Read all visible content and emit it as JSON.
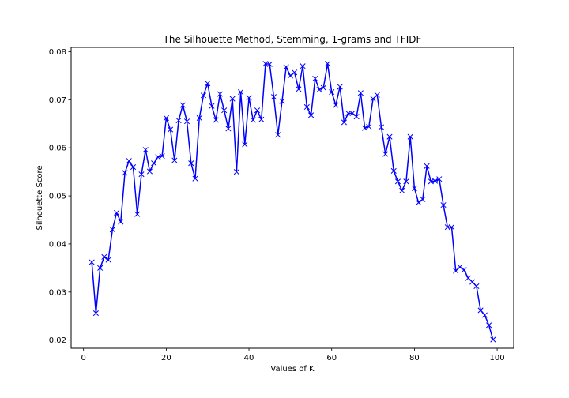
{
  "chart_data": {
    "type": "line",
    "title": "The Silhouette Method, Stemming, 1-grams and TFIDF",
    "xlabel": "Values of K",
    "ylabel": "Silhouette Score",
    "xlim": [
      -3.0,
      104.0
    ],
    "ylim": [
      0.0183,
      0.0809
    ],
    "x_ticks": [
      0,
      20,
      40,
      60,
      80,
      100
    ],
    "y_ticks": [
      0.02,
      0.03,
      0.04,
      0.05,
      0.06,
      0.07,
      0.08
    ],
    "y_tick_labels": [
      "0.02",
      "0.03",
      "0.04",
      "0.05",
      "0.06",
      "0.07",
      "0.08"
    ],
    "grid": false,
    "legend": "none",
    "series_color": "#0000ff",
    "marker": "x",
    "x": [
      2,
      3,
      4,
      5,
      6,
      7,
      8,
      9,
      10,
      11,
      12,
      13,
      14,
      15,
      16,
      17,
      18,
      19,
      20,
      21,
      22,
      23,
      24,
      25,
      26,
      27,
      28,
      29,
      30,
      31,
      32,
      33,
      34,
      35,
      36,
      37,
      38,
      39,
      40,
      41,
      42,
      43,
      44,
      45,
      46,
      47,
      48,
      49,
      50,
      51,
      52,
      53,
      54,
      55,
      56,
      57,
      58,
      59,
      60,
      61,
      62,
      63,
      64,
      65,
      66,
      67,
      68,
      69,
      70,
      71,
      72,
      73,
      74,
      75,
      76,
      77,
      78,
      79,
      80,
      81,
      82,
      83,
      84,
      85,
      86,
      87,
      88,
      89,
      90,
      91,
      92,
      93,
      94,
      95,
      96,
      97,
      98,
      99
    ],
    "y": [
      0.0362,
      0.0256,
      0.035,
      0.0373,
      0.0367,
      0.043,
      0.0465,
      0.0446,
      0.0548,
      0.0573,
      0.056,
      0.0462,
      0.0545,
      0.0596,
      0.0551,
      0.0568,
      0.0581,
      0.0583,
      0.0662,
      0.0638,
      0.0574,
      0.0657,
      0.0689,
      0.0655,
      0.0568,
      0.0536,
      0.0662,
      0.0709,
      0.0734,
      0.0687,
      0.0658,
      0.0712,
      0.0678,
      0.064,
      0.0702,
      0.055,
      0.0716,
      0.0607,
      0.0704,
      0.0658,
      0.0678,
      0.0659,
      0.0775,
      0.0774,
      0.0706,
      0.0627,
      0.0697,
      0.0768,
      0.075,
      0.0757,
      0.0722,
      0.077,
      0.0685,
      0.0668,
      0.0744,
      0.0721,
      0.0725,
      0.0775,
      0.0716,
      0.0689,
      0.0727,
      0.0653,
      0.0672,
      0.0672,
      0.0665,
      0.0714,
      0.0641,
      0.0644,
      0.0702,
      0.071,
      0.0643,
      0.0587,
      0.0623,
      0.0552,
      0.053,
      0.0511,
      0.053,
      0.0623,
      0.0516,
      0.0486,
      0.0493,
      0.0562,
      0.053,
      0.0531,
      0.0535,
      0.0481,
      0.0435,
      0.0435,
      0.0344,
      0.0352,
      0.0346,
      0.0329,
      0.0321,
      0.0312,
      0.0262,
      0.0252,
      0.0231,
      0.0201
    ]
  }
}
